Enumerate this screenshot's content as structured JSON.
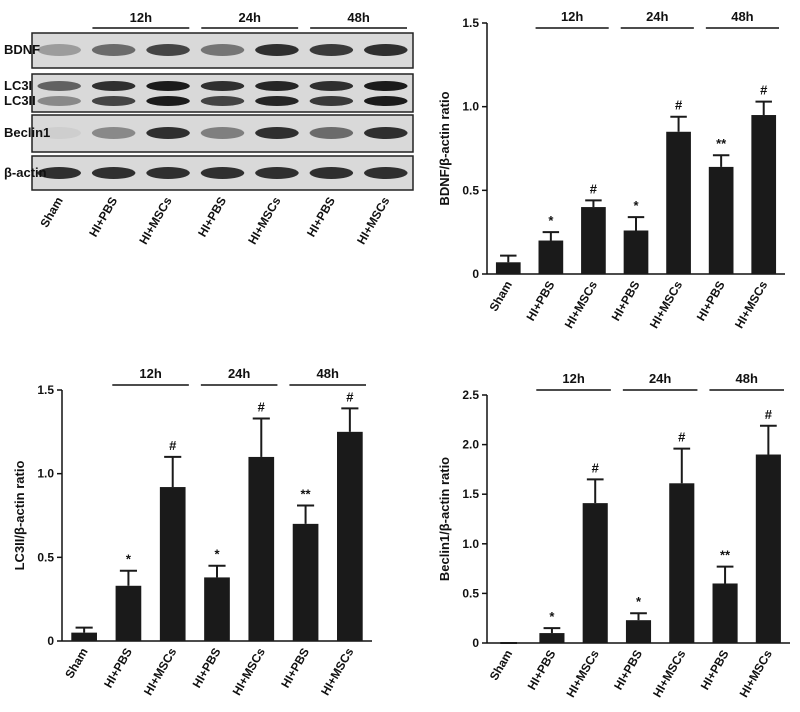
{
  "blot": {
    "rows": [
      "BDNF",
      "LC3I",
      "LC3II",
      "Beclin1",
      "β-actin"
    ],
    "lanes": [
      "Sham",
      "HI+PBS",
      "HI+MSCs",
      "HI+PBS",
      "HI+MSCs",
      "HI+PBS",
      "HI+MSCs"
    ],
    "groups": [
      "12h",
      "24h",
      "48h"
    ]
  },
  "chart_data": [
    {
      "type": "bar",
      "y_label": "BDNF/β-actin ratio",
      "categories": [
        "Sham",
        "HI+PBS",
        "HI+MSCs",
        "HI+PBS",
        "HI+MSCs",
        "HI+PBS",
        "HI+MSCs"
      ],
      "groups": [
        "12h",
        "24h",
        "48h"
      ],
      "values": [
        0.07,
        0.2,
        0.4,
        0.26,
        0.85,
        0.64,
        0.95
      ],
      "errors": [
        0.04,
        0.05,
        0.04,
        0.08,
        0.09,
        0.07,
        0.08
      ],
      "annotations": [
        null,
        "*",
        "#",
        "*",
        "#",
        "**",
        "#"
      ],
      "color": "#1a1a1a",
      "ylim": [
        0,
        1.5
      ],
      "yticks": [
        0,
        0.5,
        {
          "value": 1,
          "label": "1.0"
        },
        1.5
      ]
    },
    {
      "type": "bar",
      "y_label": "LC3II/β-actin ratio",
      "categories": [
        "Sham",
        "HI+PBS",
        "HI+MSCs",
        "HI+PBS",
        "HI+MSCs",
        "HI+PBS",
        "HI+MSCs"
      ],
      "groups": [
        "12h",
        "24h",
        "48h"
      ],
      "values": [
        0.05,
        0.33,
        0.92,
        0.38,
        1.1,
        0.7,
        1.25
      ],
      "errors": [
        0.03,
        0.09,
        0.18,
        0.07,
        0.23,
        0.11,
        0.14
      ],
      "annotations": [
        null,
        "*",
        "#",
        "*",
        "#",
        "**",
        "#"
      ],
      "color": "#1a1a1a",
      "ylim": [
        0,
        1.5
      ],
      "yticks": [
        0,
        0.5,
        {
          "value": 1,
          "label": "1.0"
        },
        1.5
      ]
    },
    {
      "type": "bar",
      "y_label": "Beclin1/β-actin ratio",
      "categories": [
        "Sham",
        "HI+PBS",
        "HI+MSCs",
        "HI+PBS",
        "HI+MSCs",
        "HI+PBS",
        "HI+MSCs"
      ],
      "groups": [
        "12h",
        "24h",
        "48h"
      ],
      "values": [
        0,
        0.1,
        1.41,
        0.23,
        1.61,
        0.6,
        1.9
      ],
      "errors": [
        0,
        0.05,
        0.24,
        0.07,
        0.35,
        0.17,
        0.29
      ],
      "annotations": [
        null,
        "*",
        "#",
        "*",
        "#",
        "**",
        "#"
      ],
      "color": "#1a1a1a",
      "ylim": [
        0,
        2.5
      ],
      "yticks": [
        0,
        0.5,
        {
          "value": 1,
          "label": "1.0"
        },
        1.5,
        {
          "value": 2,
          "label": "2.0"
        },
        2.5
      ]
    }
  ]
}
